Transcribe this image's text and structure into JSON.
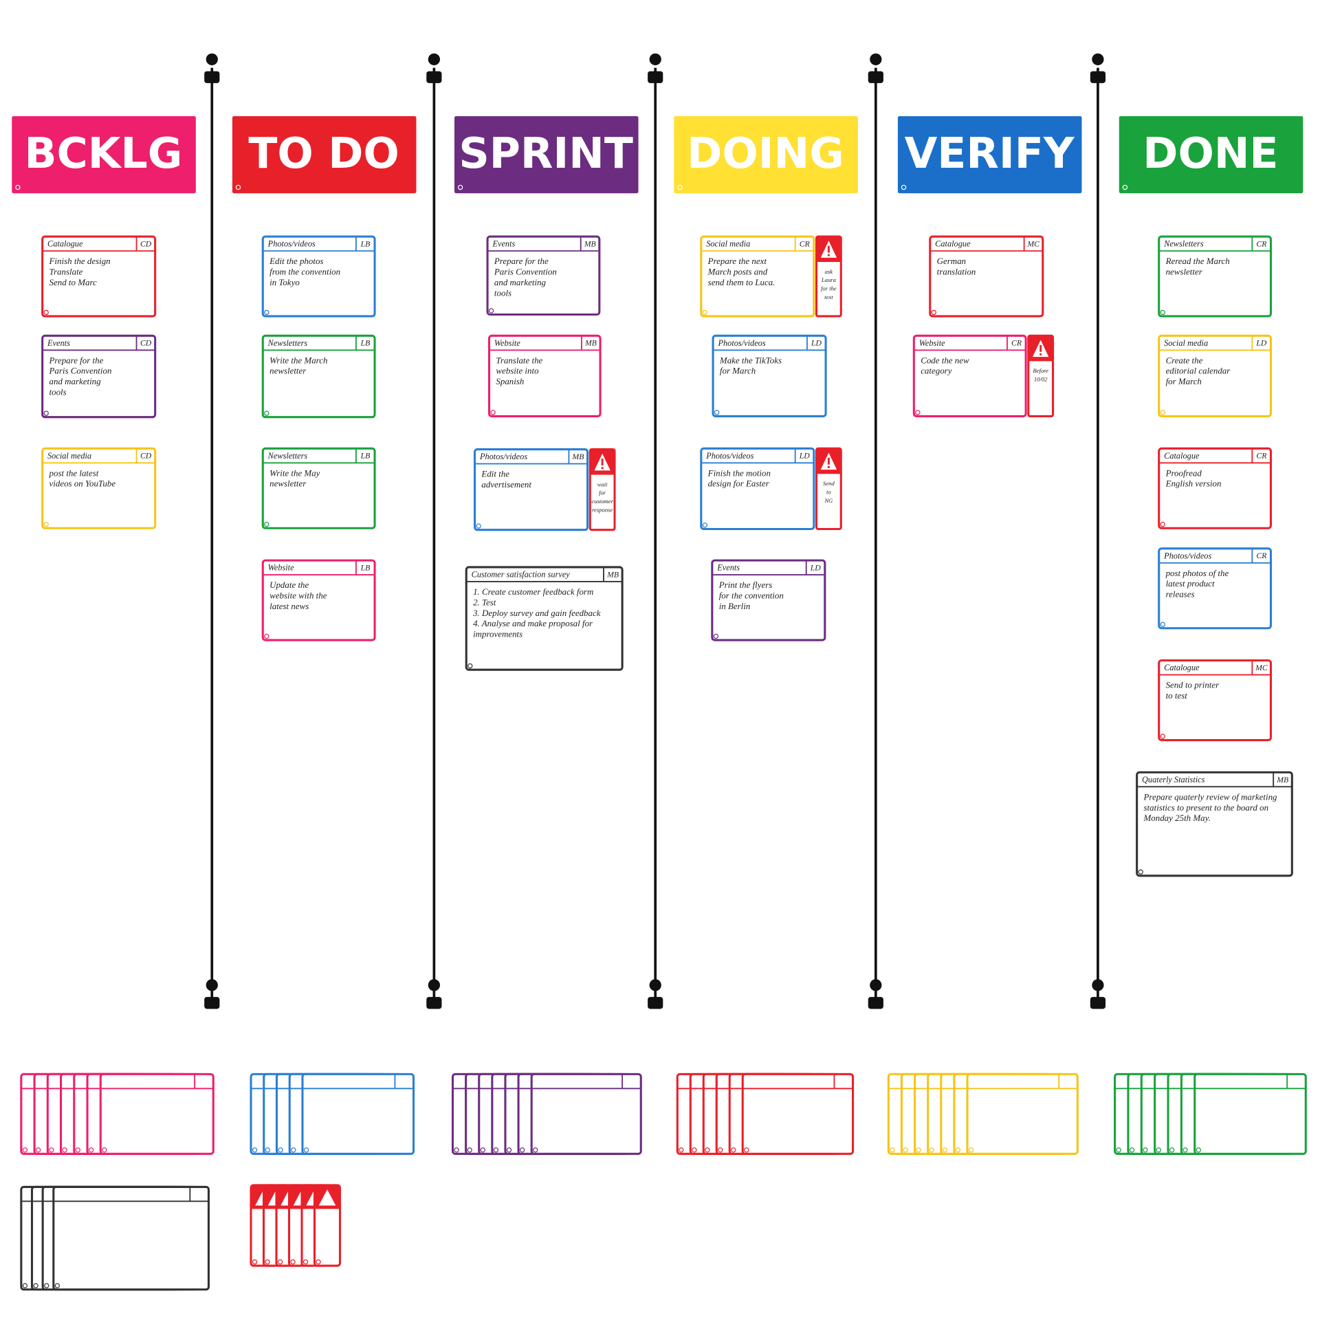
{
  "columns": [
    {
      "title": "BCKLG",
      "color": "#ee1f6c",
      "cards": [
        {
          "category": "Catalogue",
          "initials": "CD",
          "color": "#e8202a",
          "text": [
            "Finish the design",
            "Translate",
            "Send to Marc"
          ]
        },
        {
          "category": "Events",
          "initials": "CD",
          "color": "#6c2c80",
          "text": [
            "Prepare for the",
            "Paris Convention",
            "and marketing",
            "tools"
          ]
        },
        {
          "category": "Social media",
          "initials": "CD",
          "color": "#f5c518",
          "text": [
            "post the latest",
            "videos on YouTube"
          ]
        }
      ]
    },
    {
      "title": "TO DO",
      "color": "#e8202a",
      "cards": [
        {
          "category": "Photos/videos",
          "initials": "LB",
          "color": "#2a7fd4",
          "text": [
            "Edit the photos",
            "from the convention",
            "in Tokyo"
          ]
        },
        {
          "category": "Newsletters",
          "initials": "LB",
          "color": "#1aa23c",
          "text": [
            "Write the March",
            "newsletter"
          ]
        },
        {
          "category": "Newsletters",
          "initials": "LB",
          "color": "#1aa23c",
          "text": [
            "Write the May",
            "newsletter"
          ]
        },
        {
          "category": "Website",
          "initials": "LB",
          "color": "#ee1f6c",
          "text": [
            "Update the",
            "website with the",
            "latest news"
          ]
        }
      ]
    },
    {
      "title": "SPRINT",
      "color": "#6c2c80",
      "cards": [
        {
          "category": "Events",
          "initials": "MB",
          "color": "#6c2c80",
          "text": [
            "Prepare for the",
            "Paris Convention",
            "and marketing",
            "tools"
          ]
        },
        {
          "category": "Website",
          "initials": "MB",
          "color": "#ee1f6c",
          "text": [
            "Translate the",
            "website into",
            "Spanish"
          ]
        },
        {
          "category": "Photos/videos",
          "initials": "MB",
          "color": "#2a7fd4",
          "text": [
            "Edit the",
            "advertisement"
          ],
          "alert": [
            "wait",
            "for",
            "customer",
            "response"
          ]
        },
        {
          "category": "Customer satisfaction survey",
          "initials": "MB",
          "color": "#333333",
          "text": [
            "1. Create customer feedback form",
            "2. Test",
            "3. Deploy survey and gain feedback",
            "4. Analyse and make proposal for",
            "improvements"
          ]
        }
      ]
    },
    {
      "title": "DOING",
      "color": "#ffe033",
      "cards": [
        {
          "category": "Social media",
          "initials": "CR",
          "color": "#f5c518",
          "text": [
            "Prepare the next",
            "March posts and",
            "send them to Luca."
          ],
          "alert": [
            "ask",
            "Laura",
            "for the",
            "text"
          ]
        },
        {
          "category": "Photos/videos",
          "initials": "LD",
          "color": "#2a7fd4",
          "text": [
            "Make the TikToks",
            "for March"
          ]
        },
        {
          "category": "Photos/videos",
          "initials": "LD",
          "color": "#2a7fd4",
          "text": [
            "Finish the motion",
            "design for Easter"
          ],
          "alert": [
            "Send",
            "to",
            "NG"
          ]
        },
        {
          "category": "Events",
          "initials": "LD",
          "color": "#6c2c80",
          "text": [
            "Print the flyers",
            "for the convention",
            "in Berlin"
          ]
        }
      ]
    },
    {
      "title": "VERIFY",
      "color": "#1c6fc9",
      "cards": [
        {
          "category": "Catalogue",
          "initials": "MC",
          "color": "#e8202a",
          "text": [
            "German",
            "translation"
          ]
        },
        {
          "category": "Website",
          "initials": "CR",
          "color": "#ee1f6c",
          "text": [
            "Code the new",
            "category"
          ],
          "alert": [
            "Before",
            "10/02"
          ]
        }
      ]
    },
    {
      "title": "DONE",
      "color": "#1aa23c",
      "cards": [
        {
          "category": "Newsletters",
          "initials": "CR",
          "color": "#1aa23c",
          "text": [
            "Reread the March",
            "newsletter"
          ]
        },
        {
          "category": "Social media",
          "initials": "LD",
          "color": "#f5c518",
          "text": [
            "Create the",
            "editorial calendar",
            "for March"
          ]
        },
        {
          "category": "Catalogue",
          "initials": "CR",
          "color": "#e8202a",
          "text": [
            "Proofread",
            "English version"
          ]
        },
        {
          "category": "Photos/videos",
          "initials": "CR",
          "color": "#2a7fd4",
          "text": [
            "post photos of the",
            "latest product",
            "releases"
          ]
        },
        {
          "category": "Catalogue",
          "initials": "MC",
          "color": "#e8202a",
          "text": [
            "Send to printer",
            "to test"
          ]
        },
        {
          "category": "Quaterly Statistics",
          "initials": "MB",
          "color": "#333333",
          "text": [
            "Prepare quaterly review of marketing",
            "statistics to present to the board on",
            "Monday 25th May."
          ]
        }
      ]
    }
  ]
}
